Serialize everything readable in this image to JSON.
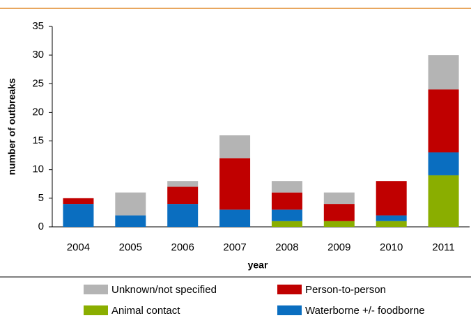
{
  "chart_data": {
    "type": "stacked_bar",
    "x_label": "year",
    "y_label": "number of outbreaks",
    "categories": [
      "2004",
      "2005",
      "2006",
      "2007",
      "2008",
      "2009",
      "2010",
      "2011"
    ],
    "series": [
      {
        "name": "Animal contact",
        "color": "#8aae00",
        "values": [
          0,
          0,
          0,
          0,
          1,
          1,
          1,
          9
        ]
      },
      {
        "name": "Waterborne +/- foodborne",
        "color": "#0a6ec0",
        "values": [
          4,
          2,
          4,
          3,
          2,
          0,
          1,
          4
        ]
      },
      {
        "name": "Person-to-person",
        "color": "#c00000",
        "values": [
          1,
          0,
          3,
          9,
          3,
          3,
          6,
          11
        ]
      },
      {
        "name": "Unknown/not specified",
        "color": "#b4b4b4",
        "values": [
          0,
          4,
          1,
          4,
          2,
          2,
          0,
          6
        ]
      }
    ],
    "ylim": [
      0,
      35
    ],
    "yticks": [
      0,
      5,
      10,
      15,
      20,
      25,
      30,
      35
    ],
    "grid": false,
    "legend": "bottom"
  }
}
